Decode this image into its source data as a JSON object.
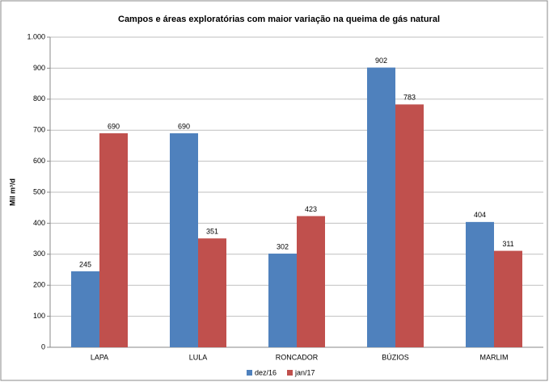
{
  "chart_data": {
    "type": "bar",
    "title": "Campos e áreas exploratórias com maior variação na queima de gás natural",
    "y_label": "Mil m³/d",
    "categories": [
      "LAPA",
      "LULA",
      "RONCADOR",
      "BÚZIOS",
      "MARLIM"
    ],
    "series": [
      {
        "name": "dez/16",
        "color": "#4f81bd",
        "values": [
          245,
          690,
          302,
          902,
          404
        ]
      },
      {
        "name": "jan/17",
        "color": "#c0504d",
        "values": [
          690,
          351,
          423,
          783,
          311
        ]
      }
    ],
    "ylim": [
      0,
      1000
    ],
    "yticks": [
      0,
      100,
      200,
      300,
      400,
      500,
      600,
      700,
      800,
      900,
      {
        "value": 1000,
        "label": "1.000"
      }
    ],
    "grid": true,
    "legend": "bottom"
  }
}
